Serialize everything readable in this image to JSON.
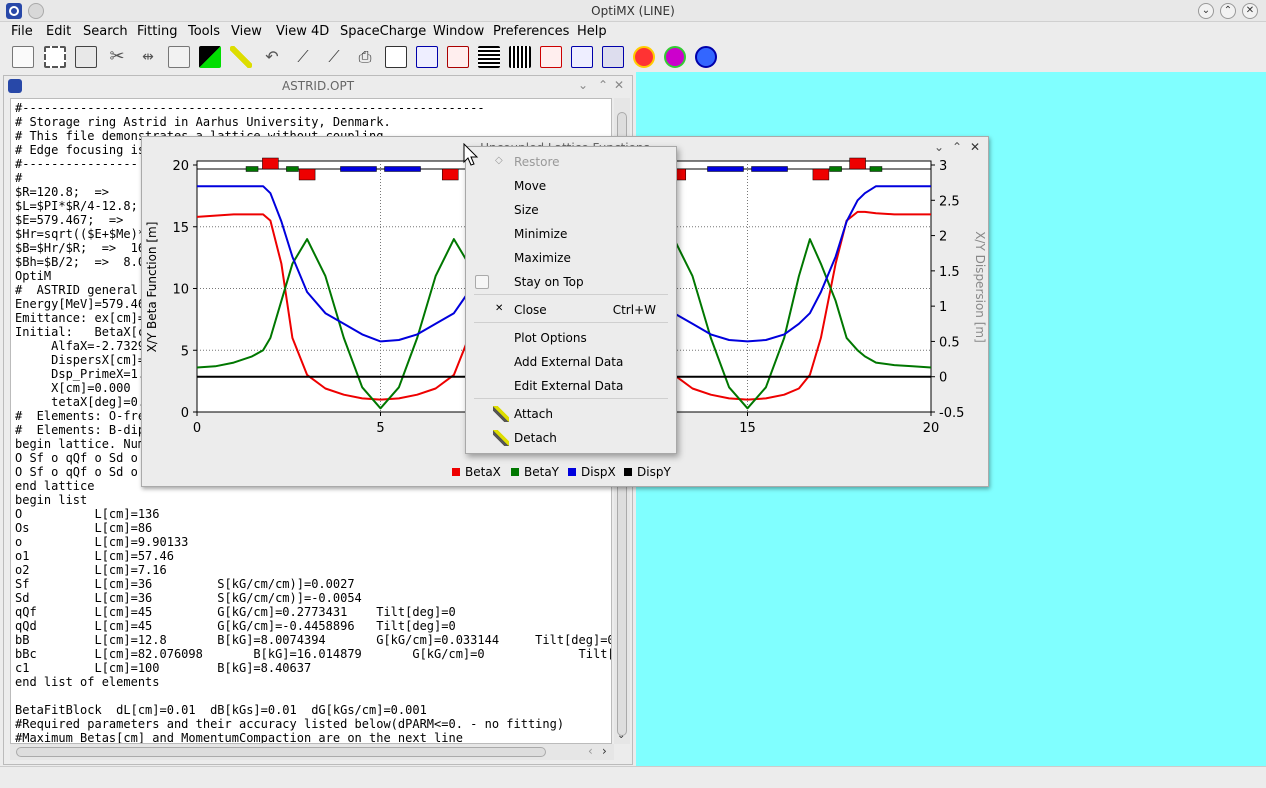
{
  "window": {
    "title": "OptiMX (LINE)"
  },
  "menu": [
    "File",
    "Edit",
    "Search",
    "Fitting",
    "Tools",
    "View",
    "View 4D",
    "SpaceCharge",
    "Window",
    "Preferences",
    "Help"
  ],
  "toolbar_icons": [
    "clipboard-icon",
    "cut-select-icon",
    "copy-icon",
    "scissors-icon",
    "split-icon",
    "paste-icon",
    "green-stairs-icon",
    "wand-icon",
    "undo-icon",
    "pipette-icon",
    "pipette2-icon",
    "print-icon",
    "book-icon",
    "plot-beta-icon",
    "plot-lattice-icon",
    "lines-icon",
    "grid-icon",
    "curve-icon",
    "line-plot-icon",
    "trajectory-icon",
    "stop-icon",
    "arrow-circle-icon",
    "refresh-icon"
  ],
  "editor": {
    "title": "ASTRID.OPT",
    "lines": [
      "#----------------------------------------------------------------",
      "# Storage ring Astrid in Aarhus University, Denmark.",
      "# This file demonstrates a lattice without coupling",
      "# Edge focusing is",
      "#----------------",
      "#",
      "$R=120.8;  =>",
      "$L=$PI*$R/4-12.8;",
      "$E=579.467;  =>",
      "$Hr=sqrt(($E+$Me)*",
      "$B=$Hr/$R;  =>  16",
      "$Bh=$B/2;  =>  8.0",
      "OptiM",
      "#  ASTRID general",
      "Energy[MeV]=579.46",
      "Emittance: ex[cm]=",
      "Initial:   BetaX[c",
      "     AlfaX=-2.7329",
      "     DispersX[cm]=",
      "     Dsp_PrimeX=1.",
      "     X[cm]=0.000",
      "     tetaX[deg]=0.",
      "#  Elements: O-free",
      "#  Elements: B-dipo",
      "begin lattice. Numb",
      "O Sf o qQf o Sd o c",
      "O Sf o qQf o Sd o c",
      "end lattice",
      "begin list",
      "O          L[cm]=136",
      "Os         L[cm]=86",
      "o          L[cm]=9.90133",
      "o1         L[cm]=57.46",
      "o2         L[cm]=7.16",
      "Sf         L[cm]=36         S[kG/cm/cm)]=0.0027",
      "Sd         L[cm]=36         S[kG/cm/cm)]=-0.0054",
      "qQf        L[cm]=45         G[kG/cm]=0.2773431    Tilt[deg]=0",
      "qQd        L[cm]=45         G[kG/cm]=-0.4458896   Tilt[deg]=0",
      "bB         L[cm]=12.8       B[kG]=8.0074394       G[kG/cm]=0.033144     Tilt[deg]=0",
      "bBc        L[cm]=82.076098       B[kG]=16.014879       G[kG/cm]=0             Tilt[",
      "c1         L[cm]=100        B[kG]=8.40637",
      "end list of elements",
      "",
      "BetaFitBlock  dL[cm]=0.01  dB[kGs]=0.01  dG[kGs/cm]=0.001",
      "#Required parameters and their accuracy listed below(dPARM<=0. - no fitting)",
      "#Maximum Betas[cm] and MomentumCompaction are on the next line"
    ]
  },
  "plot_window": {
    "title": "Uncoupled Lattice Functions"
  },
  "chart_data": {
    "type": "line",
    "title": "",
    "xlabel": "",
    "ylabel": "X/Y Beta Function [m]",
    "y2label": "X/Y Dispersion [m]",
    "xlim": [
      0,
      20
    ],
    "ylim": [
      0,
      20
    ],
    "y2lim": [
      -0.5,
      3
    ],
    "x_ticks": [
      "0",
      "5",
      "10",
      "15",
      "20"
    ],
    "y_ticks": [
      "0",
      "5",
      "10",
      "15",
      "20"
    ],
    "y2_ticks": [
      "-0.5",
      "0",
      "0.5",
      "1",
      "1.5",
      "2",
      "2.5",
      "3"
    ],
    "grid": true,
    "legend_position": "bottom",
    "x": [
      0,
      0.5,
      1,
      1.5,
      1.8,
      2.0,
      2.3,
      2.6,
      3,
      3.5,
      4,
      4.5,
      5,
      5.5,
      6,
      6.5,
      7,
      7.4,
      7.7,
      8,
      8.2,
      8.5,
      9,
      9.5,
      10,
      10.5,
      11,
      11.5,
      11.8,
      12,
      12.3,
      12.6,
      13,
      13.5,
      14,
      14.5,
      15,
      15.5,
      16,
      16.4,
      16.7,
      17,
      17.4,
      17.7,
      18,
      18.2,
      18.5,
      19,
      19.5,
      20
    ],
    "series": [
      {
        "name": "BetaX",
        "color": "#ee0000",
        "axis": "left",
        "values": [
          15.8,
          15.9,
          16.0,
          16.0,
          16.0,
          15.5,
          12,
          6,
          3.0,
          1.9,
          1.4,
          1.1,
          1.0,
          1.1,
          1.4,
          1.9,
          3.0,
          6,
          12,
          15.5,
          16.0,
          16.0,
          16.0,
          16.0,
          16.0,
          16.0,
          16.0,
          16.0,
          16.0,
          15.5,
          12,
          6,
          3.0,
          1.9,
          1.4,
          1.1,
          1.0,
          1.1,
          1.4,
          1.9,
          3.0,
          6,
          12,
          15.5,
          16.2,
          16.2,
          16.1,
          16.0,
          16.0,
          16.0
        ]
      },
      {
        "name": "BetaY",
        "color": "#007700",
        "axis": "left",
        "values": [
          3.6,
          3.7,
          4.0,
          4.5,
          5.0,
          6.0,
          9,
          12,
          14.0,
          11,
          6,
          2,
          0.3,
          2,
          6,
          11,
          14.0,
          12,
          9,
          6.0,
          5.0,
          4.5,
          4.0,
          3.7,
          3.6,
          3.7,
          4.0,
          4.5,
          5.0,
          6.0,
          9,
          12,
          14.0,
          11,
          6,
          2,
          0.3,
          2,
          6,
          11,
          14.0,
          12,
          9,
          6.0,
          5.0,
          4.5,
          4.0,
          3.8,
          3.7,
          3.6
        ]
      },
      {
        "name": "DispX",
        "color": "#0000dd",
        "axis": "right",
        "values": [
          2.7,
          2.7,
          2.7,
          2.7,
          2.7,
          2.6,
          2.2,
          1.7,
          1.2,
          0.9,
          0.75,
          0.6,
          0.5,
          0.52,
          0.6,
          0.75,
          0.9,
          1.2,
          1.7,
          2.2,
          2.5,
          2.6,
          2.7,
          2.7,
          2.7,
          2.7,
          2.7,
          2.6,
          2.5,
          2.2,
          1.7,
          1.2,
          0.9,
          0.75,
          0.6,
          0.52,
          0.5,
          0.52,
          0.6,
          0.75,
          0.9,
          1.2,
          1.7,
          2.2,
          2.5,
          2.6,
          2.7,
          2.7,
          2.7,
          2.7
        ]
      },
      {
        "name": "DispY",
        "color": "#000000",
        "axis": "right",
        "values": [
          0,
          0,
          0,
          0,
          0,
          0,
          0,
          0,
          0,
          0,
          0,
          0,
          0,
          0,
          0,
          0,
          0,
          0,
          0,
          0,
          0,
          0,
          0,
          0,
          0,
          0,
          0,
          0,
          0,
          0,
          0,
          0,
          0,
          0,
          0,
          0,
          0,
          0,
          0,
          0,
          0,
          0,
          0,
          0,
          0,
          0,
          0,
          0,
          0,
          0
        ]
      }
    ],
    "lattice_elements": [
      {
        "type": "dipole",
        "color": "#ee0000",
        "s": 2.0,
        "side": "up"
      },
      {
        "type": "dipole",
        "color": "#ee0000",
        "s": 3.0,
        "side": "down"
      },
      {
        "type": "dipole",
        "color": "#ee0000",
        "s": 6.9,
        "side": "down"
      },
      {
        "type": "dipole",
        "color": "#ee0000",
        "s": 13.1,
        "side": "down"
      },
      {
        "type": "dipole",
        "color": "#ee0000",
        "s": 17.0,
        "side": "down"
      },
      {
        "type": "dipole",
        "color": "#ee0000",
        "s": 18.0,
        "side": "up"
      },
      {
        "type": "quad",
        "color": "#007700",
        "s": 1.5,
        "side": "up"
      },
      {
        "type": "quad",
        "color": "#007700",
        "s": 2.6,
        "side": "up"
      },
      {
        "type": "quad",
        "color": "#007700",
        "s": 17.4,
        "side": "up"
      },
      {
        "type": "quad",
        "color": "#007700",
        "s": 18.5,
        "side": "up"
      },
      {
        "type": "sext",
        "color": "#0000dd",
        "s": 4.4,
        "side": "up"
      },
      {
        "type": "sext",
        "color": "#0000dd",
        "s": 5.6,
        "side": "up"
      },
      {
        "type": "sext",
        "color": "#0000dd",
        "s": 14.4,
        "side": "up"
      },
      {
        "type": "sext",
        "color": "#0000dd",
        "s": 15.6,
        "side": "up"
      }
    ]
  },
  "context_menu": {
    "items": [
      {
        "label": "Restore",
        "disabled": true,
        "mark": "◇"
      },
      {
        "label": "Move"
      },
      {
        "label": "Size"
      },
      {
        "label": "Minimize"
      },
      {
        "label": "Maximize"
      },
      {
        "label": "Stay on Top",
        "checkbox": true
      },
      {
        "label": "Close",
        "shortcut": "Ctrl+W",
        "mark": "✕"
      },
      {
        "label": "Plot Options"
      },
      {
        "label": "Add External Data"
      },
      {
        "label": "Edit External Data"
      },
      {
        "label": "Attach",
        "icon": "attach-icon"
      },
      {
        "label": "Detach",
        "icon": "detach-icon"
      }
    ]
  },
  "colors": {
    "mdi_background": "#80ffff",
    "betax": "#ee0000",
    "betay": "#007700",
    "dispx": "#0000dd",
    "dispy": "#000000"
  }
}
